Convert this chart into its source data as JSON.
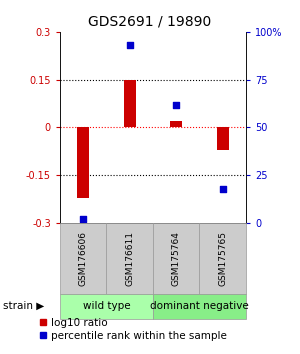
{
  "title": "GDS2691 / 19890",
  "samples": [
    "GSM176606",
    "GSM176611",
    "GSM175764",
    "GSM175765"
  ],
  "log10_ratio": [
    -0.22,
    0.15,
    0.02,
    -0.07
  ],
  "percentile_rank": [
    2.0,
    93.0,
    62.0,
    18.0
  ],
  "ylim_left": [
    -0.3,
    0.3
  ],
  "ylim_right": [
    0,
    100
  ],
  "yticks_left": [
    -0.3,
    -0.15,
    0.0,
    0.15,
    0.3
  ],
  "yticks_right": [
    0,
    25,
    50,
    75,
    100
  ],
  "ytick_labels_left": [
    "-0.3",
    "-0.15",
    "0",
    "0.15",
    "0.3"
  ],
  "ytick_labels_right": [
    "0",
    "25",
    "50",
    "75",
    "100%"
  ],
  "hlines": [
    -0.15,
    0.0,
    0.15
  ],
  "hline_colors": [
    "black",
    "red",
    "black"
  ],
  "hline_styles": [
    "dotted",
    "dotted",
    "dotted"
  ],
  "bar_color": "#cc0000",
  "scatter_color": "#0000cc",
  "bar_width": 0.25,
  "groups": [
    {
      "label": "wild type",
      "samples": [
        0,
        1
      ],
      "color": "#aaffaa"
    },
    {
      "label": "dominant negative",
      "samples": [
        2,
        3
      ],
      "color": "#88ee88"
    }
  ],
  "sample_box_color": "#cccccc",
  "sample_box_edge": "#999999",
  "legend_log10_label": "log10 ratio",
  "legend_pct_label": "percentile rank within the sample",
  "strain_label": "strain",
  "left_tick_color": "#cc0000",
  "right_tick_color": "#0000cc",
  "title_fontsize": 10,
  "tick_fontsize": 7,
  "sample_fontsize": 6.5,
  "group_fontsize": 7.5,
  "legend_fontsize": 7.5
}
